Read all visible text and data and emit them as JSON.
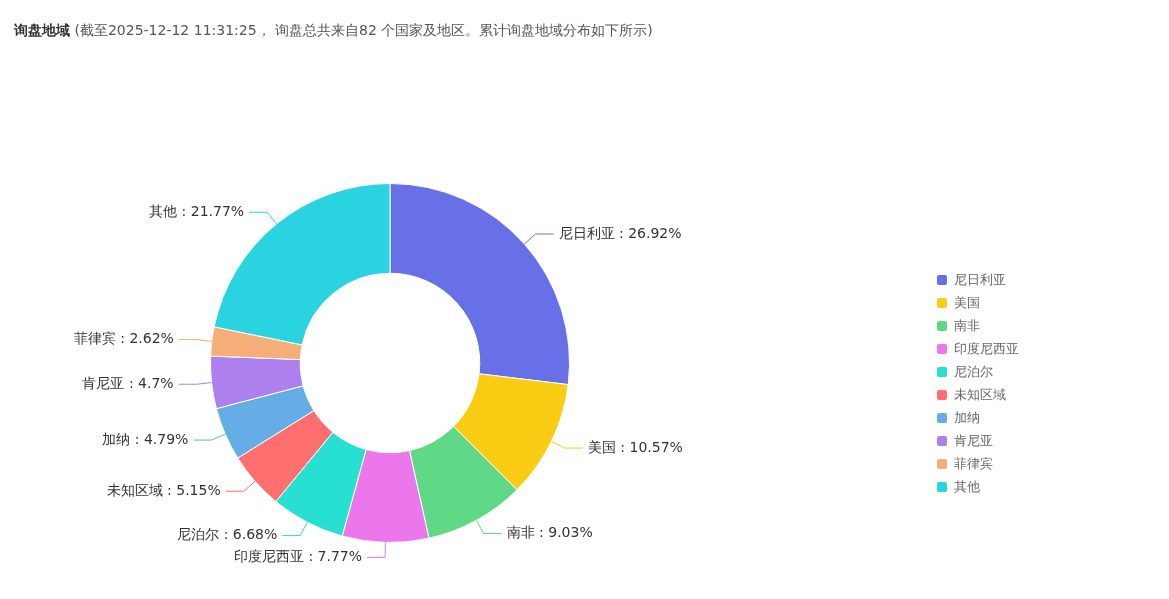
{
  "chart_data": {
    "type": "donut",
    "title": "询盘地域",
    "subtitle": "(截至2025-12-12 11:31:25， 询盘总共来自82 个国家及地区。累计询盘地域分布如下所示)",
    "categories": [
      "尼日利亚",
      "美国",
      "南非",
      "印度尼西亚",
      "尼泊尔",
      "未知区域",
      "加纳",
      "肯尼亚",
      "菲律宾",
      "其他"
    ],
    "values": [
      26.92,
      10.57,
      9.03,
      7.77,
      6.68,
      5.15,
      4.79,
      4.7,
      2.62,
      21.77
    ],
    "colors": [
      "#6770e6",
      "#facc14",
      "#5fd985",
      "#ec76ec",
      "#28e0d2",
      "#ff6f6f",
      "#64aee5",
      "#ad80ef",
      "#f6ae78",
      "#29d3e0"
    ],
    "value_labels": [
      ": 26.92%",
      ": 10.57%",
      ": 9.03%",
      ": 7.77%",
      ": 6.68%",
      ": 5.15%",
      ": 4.79%",
      ": 4.7%",
      ": 2.62%",
      ": 21.77%"
    ],
    "legend": "right"
  }
}
